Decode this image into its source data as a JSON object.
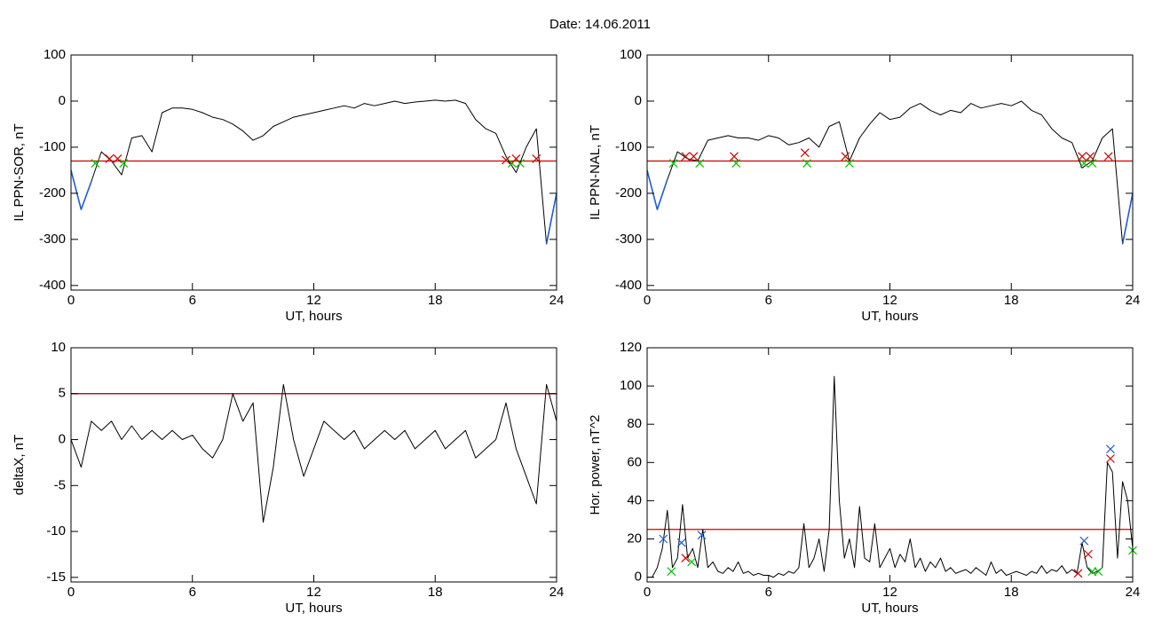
{
  "title": "Date:  14.06.2011",
  "chart_data": [
    {
      "type": "line",
      "xlabel": "UT, hours",
      "ylabel": "IL PPN-SOR, nT",
      "xlim": [
        0,
        24
      ],
      "ylim": [
        -410,
        100
      ],
      "xticks": [
        0,
        6,
        12,
        18,
        24
      ],
      "yticks": [
        100,
        0,
        -100,
        -200,
        -300,
        -400
      ],
      "x": [
        0,
        0.5,
        1,
        1.5,
        2,
        2.5,
        3,
        3.5,
        4,
        4.5,
        5,
        5.5,
        6,
        6.5,
        7,
        7.5,
        8,
        8.5,
        9,
        9.5,
        10,
        10.5,
        11,
        11.5,
        12,
        12.5,
        13,
        13.5,
        14,
        14.5,
        15,
        15.5,
        16,
        16.5,
        17,
        17.5,
        18,
        18.5,
        19,
        19.5,
        20,
        20.5,
        21,
        21.5,
        22,
        22.5,
        23,
        23.5,
        24
      ],
      "series": [
        {
          "color": "#000000",
          "values": [
            -150,
            -235,
            -175,
            -110,
            -130,
            -160,
            -80,
            -75,
            -110,
            -25,
            -15,
            -15,
            -18,
            -25,
            -35,
            -40,
            -50,
            -65,
            -85,
            -75,
            -55,
            -45,
            -35,
            -30,
            -25,
            -20,
            -15,
            -10,
            -15,
            -5,
            -10,
            -5,
            0,
            -5,
            -2,
            0,
            2,
            0,
            2,
            -5,
            -40,
            -60,
            -70,
            -120,
            -155,
            -100,
            -60,
            -310,
            -200
          ]
        },
        {
          "color": "#1e5fd0",
          "values": [
            -150,
            -235,
            -175,
            null,
            null,
            -160,
            null,
            null,
            null,
            null,
            null,
            null,
            null,
            null,
            null,
            null,
            null,
            null,
            null,
            null,
            null,
            null,
            null,
            null,
            null,
            null,
            null,
            null,
            null,
            null,
            null,
            null,
            null,
            null,
            null,
            null,
            null,
            null,
            null,
            null,
            null,
            null,
            null,
            null,
            -155,
            null,
            null,
            -310,
            -200
          ]
        }
      ],
      "thresholds": [
        {
          "value": -130,
          "color": "#d00000"
        }
      ],
      "markers": [
        {
          "color": "#00c000",
          "x": [
            1.2,
            2.6,
            21.8,
            22.2
          ],
          "values": [
            -135,
            -135,
            -135,
            -135
          ]
        },
        {
          "color": "#d00000",
          "x": [
            1.9,
            2.3,
            21.5,
            22.0,
            23.0
          ],
          "values": [
            -125,
            -125,
            -128,
            -125,
            -125
          ]
        }
      ]
    },
    {
      "type": "line",
      "xlabel": "UT, hours",
      "ylabel": "IL PPN-NAL, nT",
      "xlim": [
        0,
        24
      ],
      "ylim": [
        -410,
        100
      ],
      "xticks": [
        0,
        6,
        12,
        18,
        24
      ],
      "yticks": [
        100,
        0,
        -100,
        -200,
        -300,
        -400
      ],
      "x": [
        0,
        0.5,
        1,
        1.5,
        2,
        2.5,
        3,
        3.5,
        4,
        4.5,
        5,
        5.5,
        6,
        6.5,
        7,
        7.5,
        8,
        8.5,
        9,
        9.5,
        10,
        10.5,
        11,
        11.5,
        12,
        12.5,
        13,
        13.5,
        14,
        14.5,
        15,
        15.5,
        16,
        16.5,
        17,
        17.5,
        18,
        18.5,
        19,
        19.5,
        20,
        20.5,
        21,
        21.5,
        22,
        22.5,
        23,
        23.5,
        24
      ],
      "series": [
        {
          "color": "#000000",
          "values": [
            -150,
            -235,
            -170,
            -110,
            -125,
            -130,
            -85,
            -80,
            -75,
            -80,
            -80,
            -85,
            -75,
            -80,
            -95,
            -90,
            -80,
            -100,
            -55,
            -45,
            -130,
            -80,
            -50,
            -25,
            -40,
            -35,
            -15,
            -5,
            -20,
            -30,
            -20,
            -25,
            -5,
            -15,
            -10,
            -5,
            -10,
            0,
            -20,
            -30,
            -60,
            -80,
            -90,
            -145,
            -130,
            -80,
            -60,
            -310,
            -200
          ]
        },
        {
          "color": "#1e5fd0",
          "values": [
            -150,
            -235,
            -170,
            null,
            null,
            null,
            null,
            null,
            null,
            null,
            null,
            null,
            null,
            null,
            null,
            null,
            null,
            null,
            null,
            null,
            null,
            null,
            null,
            null,
            null,
            null,
            null,
            null,
            null,
            null,
            null,
            null,
            null,
            null,
            null,
            null,
            null,
            null,
            null,
            null,
            null,
            null,
            null,
            -145,
            null,
            null,
            null,
            -310,
            -200
          ]
        }
      ],
      "thresholds": [
        {
          "value": -130,
          "color": "#d00000"
        }
      ],
      "markers": [
        {
          "color": "#00c000",
          "x": [
            1.3,
            2.6,
            4.4,
            7.9,
            10.0,
            21.6,
            22.0
          ],
          "values": [
            -135,
            -135,
            -135,
            -135,
            -135,
            -135,
            -135
          ]
        },
        {
          "color": "#d00000",
          "x": [
            1.9,
            2.3,
            4.3,
            7.8,
            9.8,
            21.5,
            21.9,
            22.8
          ],
          "values": [
            -120,
            -120,
            -120,
            -112,
            -120,
            -120,
            -120,
            -120
          ]
        }
      ]
    },
    {
      "type": "line",
      "xlabel": "UT, hours",
      "ylabel": "deltaX, nT",
      "xlim": [
        0,
        24
      ],
      "ylim": [
        -15.5,
        10
      ],
      "xticks": [
        0,
        6,
        12,
        18,
        24
      ],
      "yticks": [
        10,
        5,
        0,
        -5,
        -10,
        -15
      ],
      "x": [
        0,
        0.5,
        1,
        1.5,
        2,
        2.5,
        3,
        3.5,
        4,
        4.5,
        5,
        5.5,
        6,
        6.5,
        7,
        7.5,
        8,
        8.5,
        9,
        9.5,
        10,
        10.5,
        11,
        11.5,
        12,
        12.5,
        13,
        13.5,
        14,
        14.5,
        15,
        15.5,
        16,
        16.5,
        17,
        17.5,
        18,
        18.5,
        19,
        19.5,
        20,
        20.5,
        21,
        21.5,
        22,
        22.5,
        23,
        23.5,
        24
      ],
      "series": [
        {
          "color": "#000000",
          "values": [
            0,
            -3,
            2,
            1,
            2,
            0,
            1.5,
            0,
            1,
            0,
            1,
            0,
            0.5,
            -1,
            -2,
            0,
            5,
            2,
            4,
            -9,
            -3,
            6,
            0,
            -4,
            -1,
            2,
            1,
            0,
            1,
            -1,
            0,
            1,
            0,
            1,
            -1,
            0,
            1,
            -1,
            0,
            1,
            -2,
            -1,
            0,
            4,
            -1,
            -4,
            -7,
            6,
            2
          ]
        }
      ],
      "thresholds": [
        {
          "value": 5,
          "color": "#1e5fd0"
        },
        {
          "value": 5,
          "color": "#d00000"
        }
      ],
      "markers": []
    },
    {
      "type": "line",
      "xlabel": "UT, hours",
      "ylabel": "Hor. power, nT^2",
      "xlim": [
        0,
        24
      ],
      "ylim": [
        -2.5,
        120
      ],
      "xticks": [
        0,
        6,
        12,
        18,
        24
      ],
      "yticks": [
        120,
        100,
        80,
        60,
        40,
        20,
        0
      ],
      "x": [
        0,
        0.25,
        0.5,
        0.75,
        1,
        1.25,
        1.5,
        1.75,
        2,
        2.25,
        2.5,
        2.75,
        3,
        3.25,
        3.5,
        3.75,
        4,
        4.25,
        4.5,
        4.75,
        5,
        5.25,
        5.5,
        5.75,
        6,
        6.25,
        6.5,
        6.75,
        7,
        7.25,
        7.5,
        7.75,
        8,
        8.25,
        8.5,
        8.75,
        9,
        9.25,
        9.5,
        9.75,
        10,
        10.25,
        10.5,
        10.75,
        11,
        11.25,
        11.5,
        11.75,
        12,
        12.25,
        12.5,
        12.75,
        13,
        13.25,
        13.5,
        13.75,
        14,
        14.25,
        14.5,
        14.75,
        15,
        15.25,
        15.5,
        15.75,
        16,
        16.25,
        16.5,
        16.75,
        17,
        17.25,
        17.5,
        17.75,
        18,
        18.25,
        18.5,
        18.75,
        19,
        19.25,
        19.5,
        19.75,
        20,
        20.25,
        20.5,
        20.75,
        21,
        21.25,
        21.5,
        21.75,
        22,
        22.25,
        22.5,
        22.75,
        23,
        23.25,
        23.5,
        23.75,
        24
      ],
      "series": [
        {
          "color": "#000000",
          "values": [
            0,
            0,
            5,
            15,
            35,
            5,
            10,
            38,
            10,
            15,
            5,
            25,
            5,
            8,
            3,
            2,
            5,
            3,
            8,
            2,
            3,
            1,
            2,
            1,
            1,
            0,
            2,
            1,
            3,
            2,
            5,
            28,
            5,
            10,
            20,
            3,
            25,
            105,
            40,
            10,
            20,
            5,
            37,
            10,
            8,
            28,
            5,
            10,
            15,
            5,
            12,
            8,
            20,
            5,
            10,
            3,
            8,
            5,
            10,
            3,
            5,
            2,
            3,
            4,
            2,
            5,
            3,
            1,
            8,
            2,
            4,
            1,
            2,
            3,
            2,
            1,
            3,
            2,
            6,
            2,
            4,
            3,
            6,
            2,
            4,
            2,
            18,
            5,
            2,
            3,
            5,
            60,
            55,
            10,
            50,
            40,
            15
          ]
        }
      ],
      "thresholds": [
        {
          "value": 25,
          "color": "#d00000"
        }
      ],
      "markers": [
        {
          "color": "#1e5fd0",
          "x": [
            0.8,
            1.7,
            2.7,
            21.6,
            22.9
          ],
          "values": [
            20,
            18,
            22,
            19,
            67
          ]
        },
        {
          "color": "#d00000",
          "x": [
            1.9,
            21.3,
            21.8,
            22.9
          ],
          "values": [
            10,
            2,
            12,
            62
          ]
        },
        {
          "color": "#00c000",
          "x": [
            1.2,
            2.2,
            22.0,
            22.3,
            24.0
          ],
          "values": [
            3,
            8,
            3,
            3,
            14
          ]
        }
      ]
    }
  ]
}
